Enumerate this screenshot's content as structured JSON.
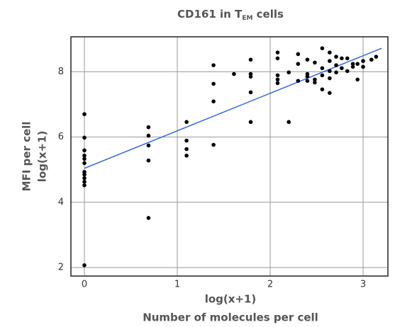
{
  "chart_data": {
    "type": "scatter",
    "title": {
      "main": "CD161 in T",
      "sub": "EM",
      "tail": " cells"
    },
    "y_label": [
      "MFI per cell",
      "log(x+1)"
    ],
    "x_label": [
      "log(x+1)",
      "Number of molecules per cell"
    ],
    "xlim": [
      -0.145,
      3.267
    ],
    "ylim": [
      1.74,
      9.07
    ],
    "xticks": [
      0,
      1,
      2,
      3
    ],
    "yticks": [
      2,
      4,
      6,
      8
    ],
    "grid": true,
    "point_color": "#000000",
    "x": [
      0,
      0,
      0,
      0,
      0,
      0,
      0,
      0,
      0,
      0,
      0,
      0,
      0.69,
      0.69,
      0.69,
      0.69,
      0.69,
      1.1,
      1.1,
      1.1,
      1.1,
      1.39,
      1.39,
      1.39,
      1.39,
      1.61,
      1.79,
      1.79,
      1.79,
      1.79,
      1.79,
      2.08,
      2.08,
      2.08,
      2.08,
      2.08,
      2.2,
      2.2,
      2.3,
      2.3,
      2.3,
      2.4,
      2.4,
      2.4,
      2.4,
      2.48,
      2.48,
      2.48,
      2.56,
      2.56,
      2.56,
      2.56,
      2.64,
      2.64,
      2.64,
      2.64,
      2.64,
      2.71,
      2.71,
      2.71,
      2.77,
      2.77,
      2.83,
      2.83,
      2.89,
      2.89,
      2.94,
      2.94,
      3.0,
      3.0,
      3.09,
      3.14
    ],
    "y": [
      6.7,
      5.98,
      5.59,
      5.43,
      5.33,
      5.2,
      4.93,
      4.85,
      4.74,
      4.63,
      4.52,
      2.07,
      6.3,
      6.04,
      5.74,
      5.28,
      3.52,
      6.46,
      5.89,
      5.63,
      5.43,
      8.2,
      7.63,
      7.09,
      5.76,
      7.93,
      8.37,
      7.93,
      7.85,
      7.37,
      6.46,
      8.59,
      8.41,
      7.89,
      7.76,
      7.65,
      7.98,
      6.46,
      8.54,
      8.24,
      7.72,
      8.37,
      7.93,
      7.85,
      7.72,
      8.28,
      7.76,
      7.67,
      8.72,
      8.11,
      7.89,
      7.46,
      8.59,
      8.33,
      8.02,
      7.8,
      7.35,
      8.46,
      8.2,
      7.98,
      8.41,
      8.11,
      8.41,
      8.02,
      8.24,
      8.15,
      8.24,
      7.76,
      8.15,
      8.33,
      8.37,
      8.46
    ],
    "trend": {
      "x": [
        0,
        3.2
      ],
      "y": [
        5.04,
        8.72
      ],
      "color": "#3366e6"
    }
  }
}
